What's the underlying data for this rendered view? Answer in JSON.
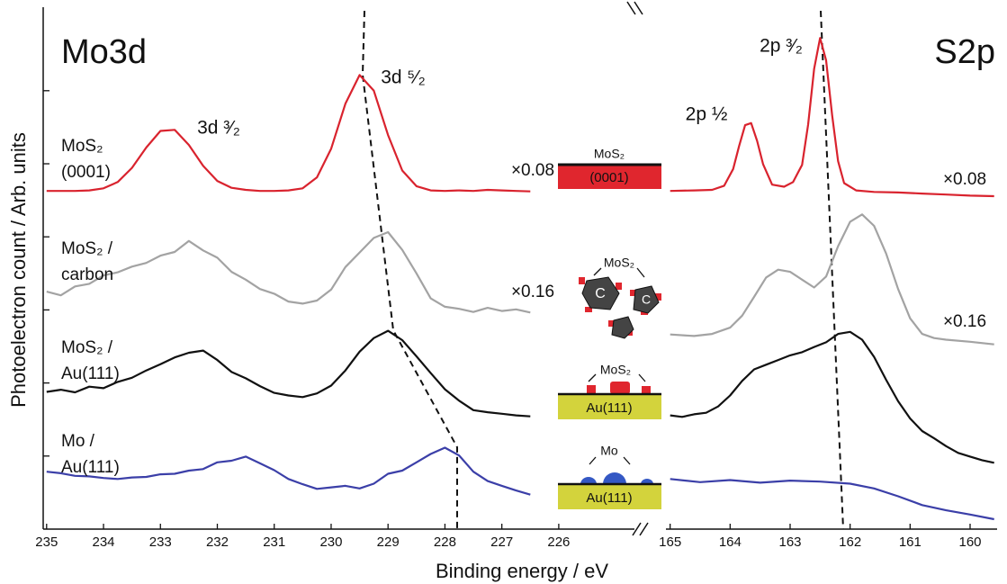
{
  "chart_data": [
    {
      "type": "line",
      "title": "Mo3d",
      "xlabel": "Binding energy / eV",
      "ylabel": "Photoelectron count / Arb. units",
      "xlim": [
        235.06,
        224.67
      ],
      "xticks": [
        235,
        234,
        233,
        232,
        231,
        230,
        229,
        228,
        227,
        226
      ],
      "ylim": [
        0,
        100
      ],
      "yticks": [
        14,
        28,
        42,
        56,
        70,
        84
      ],
      "x": [
        235,
        234.75,
        234.5,
        234.25,
        234,
        233.75,
        233.5,
        233.25,
        233,
        232.75,
        232.5,
        232.25,
        232,
        231.75,
        231.5,
        231.25,
        231,
        230.75,
        230.5,
        230.25,
        230,
        229.75,
        229.5,
        229.25,
        229,
        228.75,
        228.5,
        228.25,
        228,
        227.75,
        227.5,
        227.25,
        227,
        226.75,
        226.5
      ],
      "series": [
        {
          "name": "MoS₂ (0001)",
          "color": "#d9232e",
          "values": [
            64.8,
            64.8,
            64.8,
            64.9,
            65.3,
            66.5,
            69.2,
            73.1,
            76.3,
            76.5,
            73.6,
            69.6,
            66.7,
            65.4,
            65.0,
            64.8,
            64.8,
            64.9,
            65.3,
            67.4,
            72.9,
            81.5,
            87.0,
            84.0,
            75.5,
            68.7,
            65.7,
            64.9,
            64.8,
            64.9,
            64.8,
            65.0,
            64.9,
            64.8,
            64.7
          ]
        },
        {
          "name": "MoS₂ / carbon",
          "color": "#a3a3a3",
          "values": [
            45.5,
            44.8,
            46.5,
            47.0,
            48.6,
            49.2,
            50.3,
            51.0,
            52.4,
            53.1,
            55.2,
            53.4,
            52.0,
            49.3,
            47.8,
            46.0,
            45.1,
            43.6,
            43.2,
            43.8,
            45.9,
            50.2,
            53.0,
            55.8,
            56.9,
            53.5,
            49.0,
            44.2,
            42.6,
            42.2,
            41.6,
            42.4,
            41.8,
            42.1,
            41.5
          ]
        },
        {
          "name": "MoS₂ / Au(111)",
          "color": "#111111",
          "values": [
            26.3,
            26.7,
            26.2,
            27.3,
            27.0,
            28.2,
            29.0,
            30.4,
            31.6,
            32.9,
            33.8,
            34.2,
            32.4,
            30.1,
            28.9,
            27.4,
            26.1,
            25.6,
            25.3,
            26.0,
            27.5,
            30.4,
            34.0,
            36.6,
            38.0,
            36.2,
            33.1,
            29.9,
            26.8,
            24.6,
            22.8,
            22.4,
            22.1,
            21.8,
            21.6
          ]
        },
        {
          "name": "Mo / Au(111)",
          "color": "#3b3fa8",
          "values": [
            11.0,
            10.7,
            10.2,
            10.1,
            9.8,
            9.6,
            9.9,
            10.0,
            10.5,
            10.6,
            11.2,
            11.5,
            12.8,
            13.1,
            13.9,
            12.6,
            11.3,
            9.6,
            8.6,
            7.7,
            8.0,
            8.3,
            7.8,
            8.7,
            10.6,
            11.2,
            12.8,
            14.4,
            15.6,
            14.1,
            11.0,
            9.2,
            8.3,
            7.4,
            6.6
          ]
        }
      ],
      "annotations": [
        "3d ³⁄₂",
        "3d ⁵⁄₂",
        "×0.08",
        "×0.16"
      ],
      "insets": [
        [
          "MoS₂",
          "(0001)"
        ],
        [
          "MoS₂",
          "C",
          "C"
        ],
        [
          "MoS₂",
          "Au(111)"
        ],
        [
          "Mo",
          "Au(111)"
        ]
      ]
    },
    {
      "type": "line",
      "title": "S2p",
      "xlim": [
        165.07,
        159.55
      ],
      "xticks": [
        165,
        164,
        163,
        162,
        161,
        160
      ],
      "ylim": [
        0,
        100
      ],
      "series": [
        {
          "color": "#d9232e",
          "x": [
            165.0,
            164.6,
            164.3,
            164.1,
            163.95,
            163.85,
            163.75,
            163.65,
            163.55,
            163.45,
            163.3,
            163.1,
            162.95,
            162.8,
            162.7,
            162.6,
            162.5,
            162.4,
            162.3,
            162.2,
            162.1,
            161.9,
            161.6,
            161.2,
            160.8,
            160.4,
            160.0,
            159.6
          ],
          "values": [
            64.8,
            64.9,
            65.0,
            65.8,
            69.0,
            73.4,
            77.4,
            77.8,
            74.4,
            69.9,
            66.0,
            65.6,
            66.5,
            69.8,
            77.5,
            88.2,
            94.1,
            89.8,
            79.3,
            70.5,
            66.3,
            64.9,
            64.6,
            64.5,
            64.3,
            64.1,
            63.9,
            63.8
          ]
        },
        {
          "color": "#a3a3a3",
          "x": [
            165.0,
            164.6,
            164.3,
            164.0,
            163.8,
            163.6,
            163.4,
            163.2,
            163.0,
            162.8,
            162.6,
            162.4,
            162.2,
            162.0,
            161.8,
            161.6,
            161.4,
            161.2,
            161.0,
            160.8,
            160.6,
            160.4,
            160.0,
            159.6
          ],
          "values": [
            37.3,
            37.0,
            37.4,
            38.6,
            40.9,
            44.5,
            48.2,
            49.7,
            49.3,
            47.8,
            46.3,
            48.4,
            54.2,
            58.9,
            60.3,
            58.1,
            52.8,
            46.0,
            40.4,
            37.4,
            36.6,
            36.3,
            35.9,
            35.4
          ]
        },
        {
          "color": "#111111",
          "x": [
            165.0,
            164.8,
            164.6,
            164.4,
            164.2,
            164.0,
            163.8,
            163.6,
            163.4,
            163.2,
            163.0,
            162.8,
            162.6,
            162.4,
            162.2,
            162.0,
            161.8,
            161.6,
            161.4,
            161.2,
            161.0,
            160.8,
            160.6,
            160.4,
            160.2,
            160.0,
            159.8,
            159.6
          ],
          "values": [
            21.8,
            21.5,
            22.0,
            22.3,
            23.5,
            25.6,
            28.4,
            30.6,
            31.5,
            32.4,
            33.3,
            33.9,
            34.9,
            35.8,
            37.4,
            37.8,
            36.3,
            33.0,
            28.6,
            24.5,
            21.2,
            18.8,
            17.4,
            15.9,
            14.6,
            13.9,
            13.2,
            12.7
          ]
        },
        {
          "color": "#3b3fa8",
          "x": [
            165.0,
            164.5,
            164.0,
            163.5,
            163.0,
            162.5,
            162.0,
            161.6,
            161.2,
            160.8,
            160.4,
            160.0,
            159.6
          ],
          "values": [
            9.6,
            9.0,
            9.4,
            8.9,
            9.3,
            9.1,
            8.7,
            7.8,
            6.3,
            4.6,
            3.6,
            2.8,
            1.9
          ]
        }
      ],
      "annotations": [
        "2p ½",
        "2p ³⁄₂",
        "×0.08",
        "×0.16"
      ]
    }
  ]
}
